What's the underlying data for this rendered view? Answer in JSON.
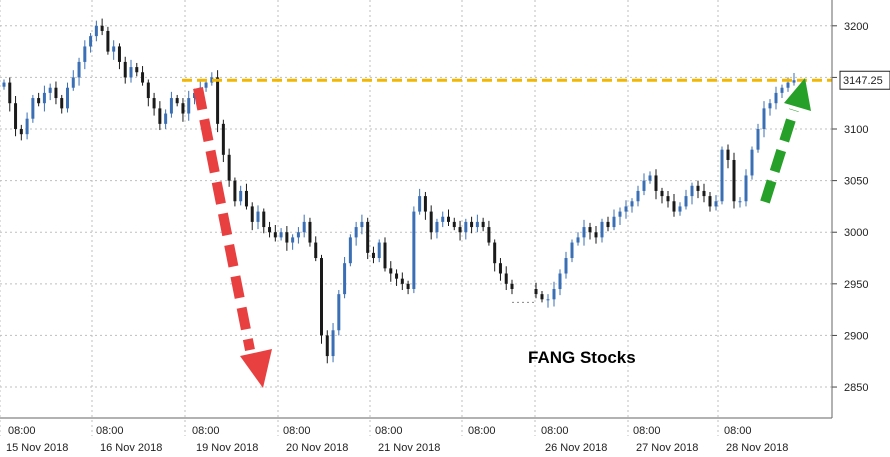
{
  "chart_data": {
    "type": "candlestick",
    "title": "",
    "xlabel": "",
    "ylabel": "",
    "ylim": [
      2820,
      3225
    ],
    "grid": true,
    "y_ticks": [
      2850,
      2900,
      2950,
      3000,
      3050,
      3100,
      3150,
      3200
    ],
    "x_time_labels": [
      "08:00",
      "08:00",
      "08:00",
      "08:00",
      "08:00",
      "08:00",
      "08:00",
      "08:00",
      "08:00"
    ],
    "x_date_labels": [
      "15 Nov 2018",
      "16 Nov 2018",
      "19 Nov 2018",
      "20 Nov 2018",
      "21 Nov 2018",
      "",
      "26 Nov 2018",
      "27 Nov 2018",
      "28 Nov 2018"
    ],
    "last_value": 3147.25,
    "last_value_label": "3147.25",
    "reference_level": 3147.25,
    "annotation": "FANG Stocks",
    "colors": {
      "up": "#3a6fb5",
      "down": "#1a1a1a",
      "reference_line": "#f2b705",
      "down_arrow": "#e84040",
      "up_arrow": "#27a02a",
      "grid": "#bfbfbf"
    },
    "series": [
      {
        "values": [
          3145,
          3125,
          3100,
          3095,
          3110,
          3130,
          3125,
          3135,
          3140,
          3130,
          3120,
          3140,
          3150,
          3165,
          3180,
          3190,
          3200,
          3195,
          3175,
          3180,
          3165,
          3150,
          3160,
          3155,
          3145,
          3130,
          3120,
          3105,
          3115,
          3130,
          3125,
          3115,
          3130,
          3135,
          3140,
          3145,
          3150,
          3105,
          3075,
          3050,
          3030,
          3040,
          3025,
          3010,
          3020,
          3005,
          3000,
          2995,
          3000,
          2990,
          2995,
          3000,
          3010,
          2990,
          2975,
          2900,
          2880,
          2905,
          2940,
          2970,
          2995,
          3005,
          3010,
          2980,
          2975,
          2990,
          2965,
          2960,
          2955,
          2950,
          2945,
          3020,
          3035,
          3020,
          3000,
          3010,
          3015,
          3010,
          3005,
          3000,
          3010,
          3005,
          3010,
          3005,
          2990,
          2970,
          2960,
          2950,
          2945,
          2940,
          2935,
          2935,
          2945,
          2960,
          2975,
          2990,
          2995,
          3005,
          3000,
          2995,
          3010,
          3005,
          3015,
          3020,
          3025,
          3030,
          3040,
          3050,
          3055,
          3040,
          3035,
          3030,
          3020,
          3025,
          3035,
          3045,
          3040,
          3035,
          3025,
          3030,
          3080,
          3070,
          3030,
          3030,
          3055,
          3080,
          3100,
          3120,
          3125,
          3135,
          3140,
          3145,
          3147.25
        ]
      }
    ]
  }
}
